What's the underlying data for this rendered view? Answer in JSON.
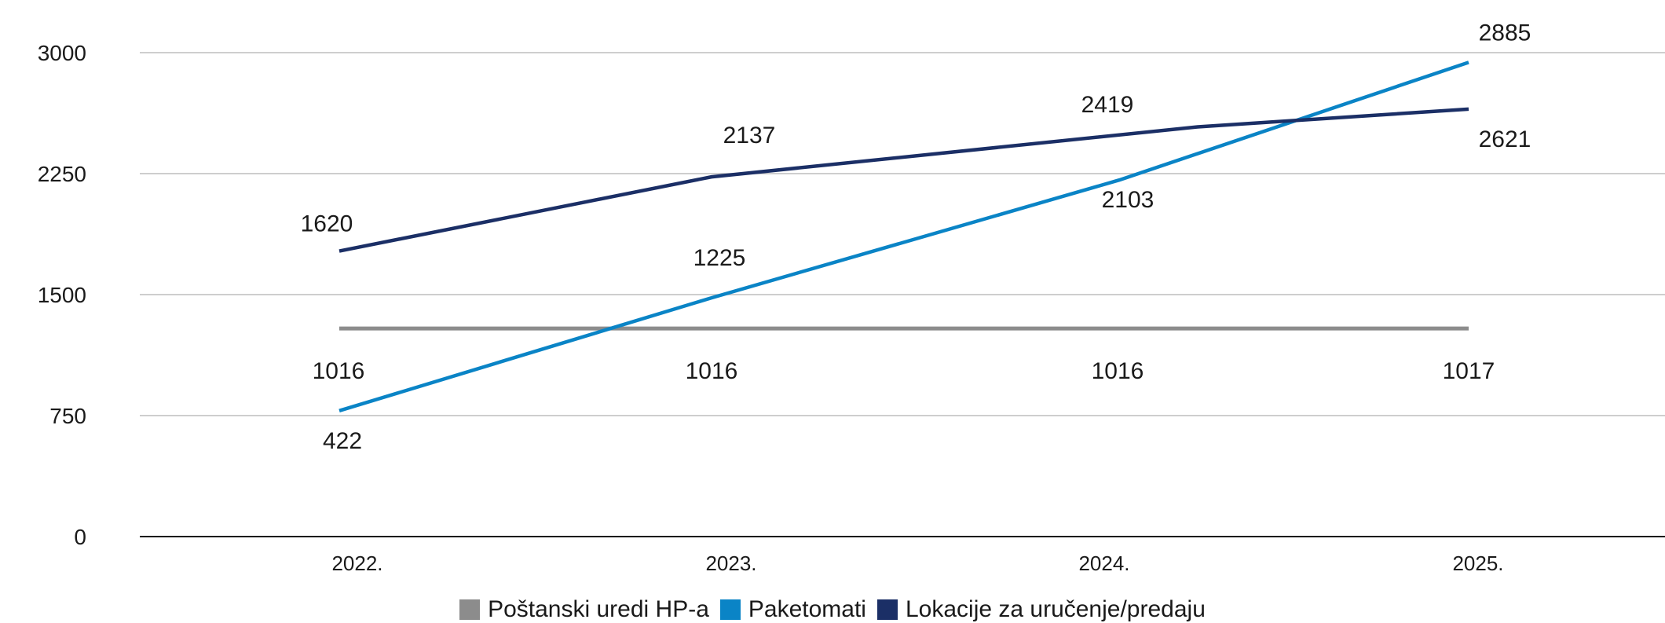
{
  "chart_data": {
    "type": "line",
    "title": "",
    "xlabel": "",
    "ylabel": "",
    "categories": [
      "2022.",
      "2023.",
      "2024.",
      "2025."
    ],
    "ylim": [
      0,
      3000
    ],
    "yticks": [
      "0",
      "750",
      "1500",
      "2250",
      "3000"
    ],
    "grid": true,
    "legend_position": "bottom",
    "series": [
      {
        "name": "Poštanski uredi HP-a",
        "color": "#8c8c8c",
        "values": [
          1016,
          1016,
          1016,
          1017
        ],
        "plot_values": [
          1290,
          1290,
          1290,
          1290
        ]
      },
      {
        "name": "Paketomati",
        "color": "#0a84c6",
        "values": [
          422,
          1225,
          2103,
          2885
        ],
        "plot_values": [
          780,
          1480,
          2210,
          2940
        ]
      },
      {
        "name": "Lokacije za uručenje/predaju",
        "color": "#1b2f66",
        "values": [
          1620,
          2137,
          2419,
          2621
        ],
        "plot_values": [
          1770,
          2230,
          2540,
          2650
        ]
      }
    ]
  }
}
